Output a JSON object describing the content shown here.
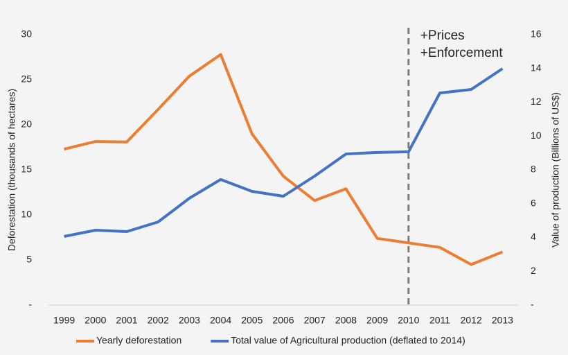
{
  "chart_data": {
    "type": "line",
    "categories": [
      "1999",
      "2000",
      "2001",
      "2002",
      "2003",
      "2004",
      "2005",
      "2006",
      "2007",
      "2008",
      "2009",
      "2010",
      "2011",
      "2012",
      "2013"
    ],
    "y_label": "Deforestation (thousands of  hectares)",
    "y2_label": "Value of production (Billions of US$)",
    "ylim": [
      0,
      30
    ],
    "yticks": [
      {
        "value": 0,
        "label": "-"
      },
      5,
      10,
      15,
      20,
      25,
      30
    ],
    "y2lim": [
      0,
      16
    ],
    "y2ticks": [
      {
        "value": 0,
        "label": "-"
      },
      2,
      4,
      6,
      8,
      10,
      12,
      14,
      16
    ],
    "series": [
      {
        "name": "Yearly deforestation",
        "color": "#ed7d31",
        "values": [
          17.3,
          18.15,
          18.1,
          21.7,
          25.4,
          27.8,
          19.0,
          14.3,
          11.6,
          12.9,
          7.4,
          6.9,
          6.4,
          4.5,
          5.9
        ]
      },
      {
        "name": "Total value of Agricultural production (deflated to 2014)",
        "color": "#4472c4",
        "axis": "y2",
        "values": [
          4.06,
          4.43,
          4.35,
          4.92,
          6.32,
          7.43,
          6.73,
          6.44,
          7.63,
          8.94,
          9.03,
          9.07,
          12.55,
          12.76,
          13.99
        ]
      }
    ],
    "marker_line": {
      "category": "2010",
      "color": "#7f7f7f",
      "annotations": [
        "+Prices",
        "+Enforcement"
      ]
    },
    "legend": "bottom"
  }
}
